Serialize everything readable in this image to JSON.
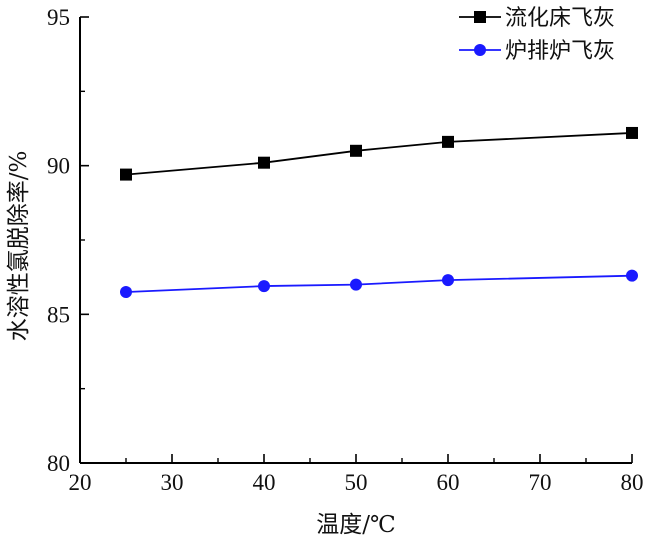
{
  "chart_data": {
    "type": "line",
    "xlabel": "温度/℃",
    "ylabel": "水溶性氯脱除率/%",
    "xlim": [
      20,
      80
    ],
    "ylim": [
      80,
      95
    ],
    "xticks": [
      20,
      30,
      40,
      50,
      60,
      70,
      80
    ],
    "yticks": [
      80,
      85,
      90,
      95
    ],
    "grid": false,
    "legend_position": "top-right",
    "series": [
      {
        "name": "流化床飞灰",
        "color": "#000000",
        "marker": "square",
        "x": [
          25,
          40,
          50,
          60,
          80
        ],
        "y": [
          89.7,
          90.1,
          90.5,
          90.8,
          91.1
        ]
      },
      {
        "name": "炉排炉飞灰",
        "color": "#1a1aff",
        "marker": "circle",
        "x": [
          25,
          40,
          50,
          60,
          80
        ],
        "y": [
          85.75,
          85.95,
          86.0,
          86.15,
          86.3
        ]
      }
    ]
  }
}
